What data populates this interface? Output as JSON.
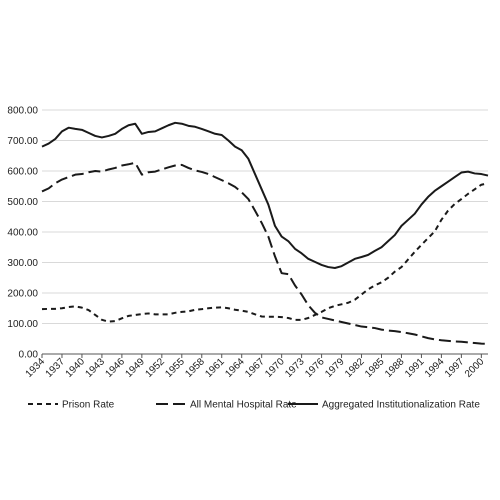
{
  "chart_data": {
    "type": "line",
    "title": "",
    "xlabel": "",
    "ylabel": "",
    "ylim": [
      0,
      800
    ],
    "y_ticks": [
      "0.00",
      "100.00",
      "200.00",
      "300.00",
      "400.00",
      "500.00",
      "600.00",
      "700.00",
      "800.00"
    ],
    "x_range": [
      1934,
      2001
    ],
    "x_ticks": [
      "1934",
      "1937",
      "1940",
      "1943",
      "1946",
      "1949",
      "1952",
      "1955",
      "1958",
      "1961",
      "1964",
      "1967",
      "1970",
      "1973",
      "1976",
      "1979",
      "1982",
      "1985",
      "1988",
      "1991",
      "1994",
      "1997",
      "2000"
    ],
    "grid": "horizontal",
    "legend_position": "bottom",
    "series": [
      {
        "name": "Prison Rate",
        "dash": "dashed",
        "x": [
          1934,
          1935,
          1936,
          1937,
          1938,
          1939,
          1940,
          1941,
          1942,
          1943,
          1944,
          1945,
          1946,
          1947,
          1948,
          1949,
          1950,
          1951,
          1952,
          1953,
          1954,
          1955,
          1956,
          1957,
          1958,
          1959,
          1960,
          1961,
          1962,
          1963,
          1964,
          1965,
          1966,
          1967,
          1968,
          1969,
          1970,
          1971,
          1972,
          1973,
          1974,
          1975,
          1976,
          1977,
          1978,
          1979,
          1980,
          1981,
          1982,
          1983,
          1984,
          1985,
          1986,
          1987,
          1988,
          1989,
          1990,
          1991,
          1992,
          1993,
          1994,
          1995,
          1996,
          1997,
          1998,
          1999,
          2000,
          2001
        ],
        "y": [
          147,
          148,
          148,
          150,
          154,
          156,
          152,
          144,
          128,
          112,
          106,
          108,
          117,
          125,
          128,
          131,
          133,
          130,
          130,
          130,
          135,
          138,
          140,
          145,
          147,
          150,
          152,
          153,
          150,
          145,
          142,
          138,
          130,
          123,
          122,
          122,
          121,
          118,
          112,
          112,
          118,
          128,
          138,
          150,
          158,
          163,
          168,
          178,
          195,
          212,
          225,
          235,
          250,
          270,
          285,
          310,
          335,
          358,
          380,
          402,
          440,
          470,
          492,
          508,
          525,
          540,
          555,
          560
        ]
      },
      {
        "name": "All Mental Hospital Rate",
        "dash": "long-dash",
        "x": [
          1934,
          1935,
          1936,
          1937,
          1938,
          1939,
          1940,
          1941,
          1942,
          1943,
          1944,
          1945,
          1946,
          1947,
          1948,
          1949,
          1950,
          1951,
          1952,
          1953,
          1954,
          1955,
          1956,
          1957,
          1958,
          1959,
          1960,
          1961,
          1962,
          1963,
          1964,
          1965,
          1966,
          1967,
          1968,
          1969,
          1970,
          1971,
          1972,
          1973,
          1974,
          1975,
          1976,
          1977,
          1978,
          1979,
          1980,
          1981,
          1982,
          1983,
          1984,
          1985,
          1986,
          1987,
          1988,
          1989,
          1990,
          1991,
          1992,
          1993,
          1994,
          1995,
          1996,
          1997,
          1998,
          1999,
          2000,
          2001
        ],
        "y": [
          533,
          543,
          560,
          572,
          580,
          588,
          590,
          596,
          600,
          598,
          605,
          610,
          618,
          622,
          627,
          588,
          596,
          598,
          605,
          612,
          618,
          620,
          610,
          602,
          597,
          590,
          580,
          570,
          560,
          548,
          530,
          508,
          470,
          430,
          385,
          320,
          265,
          262,
          225,
          195,
          160,
          135,
          120,
          115,
          110,
          105,
          100,
          95,
          90,
          88,
          85,
          80,
          77,
          75,
          72,
          68,
          64,
          58,
          52,
          48,
          45,
          43,
          41,
          40,
          38,
          36,
          34,
          33
        ]
      },
      {
        "name": "Aggregated Institutionalization Rate",
        "dash": "solid",
        "x": [
          1934,
          1935,
          1936,
          1937,
          1938,
          1939,
          1940,
          1941,
          1942,
          1943,
          1944,
          1945,
          1946,
          1947,
          1948,
          1949,
          1950,
          1951,
          1952,
          1953,
          1954,
          1955,
          1956,
          1957,
          1958,
          1959,
          1960,
          1961,
          1962,
          1963,
          1964,
          1965,
          1966,
          1967,
          1968,
          1969,
          1970,
          1971,
          1972,
          1973,
          1974,
          1975,
          1976,
          1977,
          1978,
          1979,
          1980,
          1981,
          1982,
          1983,
          1984,
          1985,
          1986,
          1987,
          1988,
          1989,
          1990,
          1991,
          1992,
          1993,
          1994,
          1995,
          1996,
          1997,
          1998,
          1999,
          2000,
          2001
        ],
        "y": [
          680,
          690,
          705,
          730,
          742,
          738,
          735,
          725,
          715,
          710,
          715,
          722,
          738,
          750,
          755,
          722,
          728,
          730,
          740,
          750,
          758,
          755,
          748,
          745,
          738,
          730,
          722,
          718,
          700,
          680,
          668,
          640,
          590,
          540,
          490,
          420,
          385,
          370,
          345,
          330,
          312,
          302,
          292,
          285,
          282,
          288,
          300,
          312,
          318,
          325,
          338,
          350,
          370,
          390,
          420,
          440,
          460,
          490,
          515,
          535,
          550,
          565,
          580,
          595,
          598,
          592,
          590,
          585
        ]
      }
    ]
  }
}
